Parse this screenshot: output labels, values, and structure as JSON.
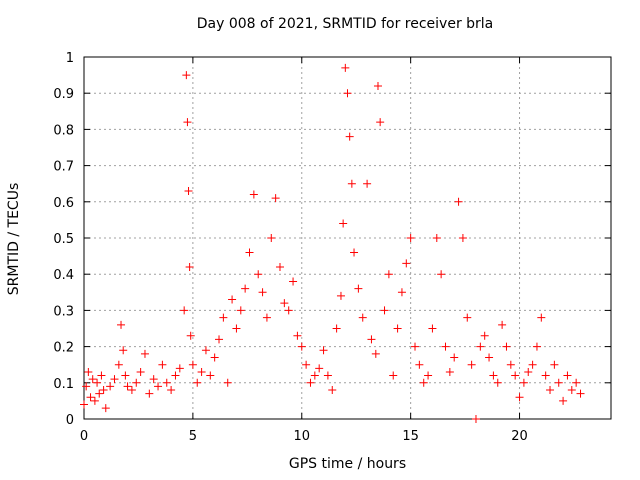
{
  "chart_data": {
    "type": "scatter",
    "title": "Day 008 of 2021, SRMTID for receiver brla",
    "xlabel": "GPS time / hours",
    "ylabel": "SRMTID / TECUs",
    "xlim": [
      0,
      24.2
    ],
    "ylim": [
      0,
      1
    ],
    "xticks": [
      0,
      5,
      10,
      15,
      20
    ],
    "yticks": [
      0,
      0.1,
      0.2,
      0.3,
      0.4,
      0.5,
      0.6,
      0.7,
      0.8,
      0.9,
      1
    ],
    "grid": true,
    "marker": "+",
    "series": [
      {
        "name": "brla",
        "color": "#ff0000",
        "x": [
          0.0,
          0.1,
          0.2,
          0.3,
          0.4,
          0.5,
          0.6,
          0.7,
          0.8,
          0.9,
          1.0,
          1.2,
          1.4,
          1.6,
          1.7,
          1.8,
          1.9,
          2.0,
          2.2,
          2.4,
          2.6,
          2.8,
          3.0,
          3.2,
          3.4,
          3.6,
          3.8,
          4.0,
          4.2,
          4.4,
          4.6,
          4.7,
          4.75,
          4.8,
          4.85,
          4.9,
          5.0,
          5.2,
          5.4,
          5.6,
          5.8,
          6.0,
          6.2,
          6.4,
          6.6,
          6.8,
          7.0,
          7.2,
          7.4,
          7.6,
          7.8,
          8.0,
          8.2,
          8.4,
          8.6,
          8.8,
          9.0,
          9.2,
          9.4,
          9.6,
          9.8,
          10.0,
          10.2,
          10.4,
          10.6,
          10.8,
          11.0,
          11.2,
          11.4,
          11.6,
          11.8,
          11.9,
          12.0,
          12.1,
          12.2,
          12.3,
          12.4,
          12.6,
          12.8,
          13.0,
          13.2,
          13.4,
          13.5,
          13.6,
          13.8,
          14.0,
          14.2,
          14.4,
          14.6,
          14.8,
          15.0,
          15.2,
          15.4,
          15.6,
          15.8,
          16.0,
          16.2,
          16.4,
          16.6,
          16.8,
          17.0,
          17.2,
          17.4,
          17.6,
          17.8,
          18.0,
          18.2,
          18.4,
          18.6,
          18.8,
          19.0,
          19.2,
          19.4,
          19.6,
          19.8,
          20.0,
          20.2,
          20.4,
          20.6,
          20.8,
          21.0,
          21.2,
          21.4,
          21.6,
          21.8,
          22.0,
          22.2,
          22.4,
          22.6,
          22.8
        ],
        "y": [
          0.04,
          0.09,
          0.13,
          0.06,
          0.11,
          0.05,
          0.1,
          0.07,
          0.12,
          0.08,
          0.03,
          0.09,
          0.11,
          0.15,
          0.26,
          0.19,
          0.12,
          0.09,
          0.08,
          0.1,
          0.13,
          0.18,
          0.07,
          0.11,
          0.09,
          0.15,
          0.1,
          0.08,
          0.12,
          0.14,
          0.3,
          0.95,
          0.82,
          0.63,
          0.42,
          0.23,
          0.15,
          0.1,
          0.13,
          0.19,
          0.12,
          0.17,
          0.22,
          0.28,
          0.1,
          0.33,
          0.25,
          0.3,
          0.36,
          0.46,
          0.62,
          0.4,
          0.35,
          0.28,
          0.5,
          0.61,
          0.42,
          0.32,
          0.3,
          0.38,
          0.23,
          0.2,
          0.15,
          0.1,
          0.12,
          0.14,
          0.19,
          0.12,
          0.08,
          0.25,
          0.34,
          0.54,
          0.97,
          0.9,
          0.78,
          0.65,
          0.46,
          0.36,
          0.28,
          0.65,
          0.22,
          0.18,
          0.92,
          0.82,
          0.3,
          0.4,
          0.12,
          0.25,
          0.35,
          0.43,
          0.5,
          0.2,
          0.15,
          0.1,
          0.12,
          0.25,
          0.5,
          0.4,
          0.2,
          0.13,
          0.17,
          0.6,
          0.5,
          0.28,
          0.15,
          0.0,
          0.2,
          0.23,
          0.17,
          0.12,
          0.1,
          0.26,
          0.2,
          0.15,
          0.12,
          0.06,
          0.1,
          0.13,
          0.15,
          0.2,
          0.28,
          0.12,
          0.08,
          0.15,
          0.1,
          0.05,
          0.12,
          0.08,
          0.1,
          0.07
        ]
      }
    ]
  }
}
